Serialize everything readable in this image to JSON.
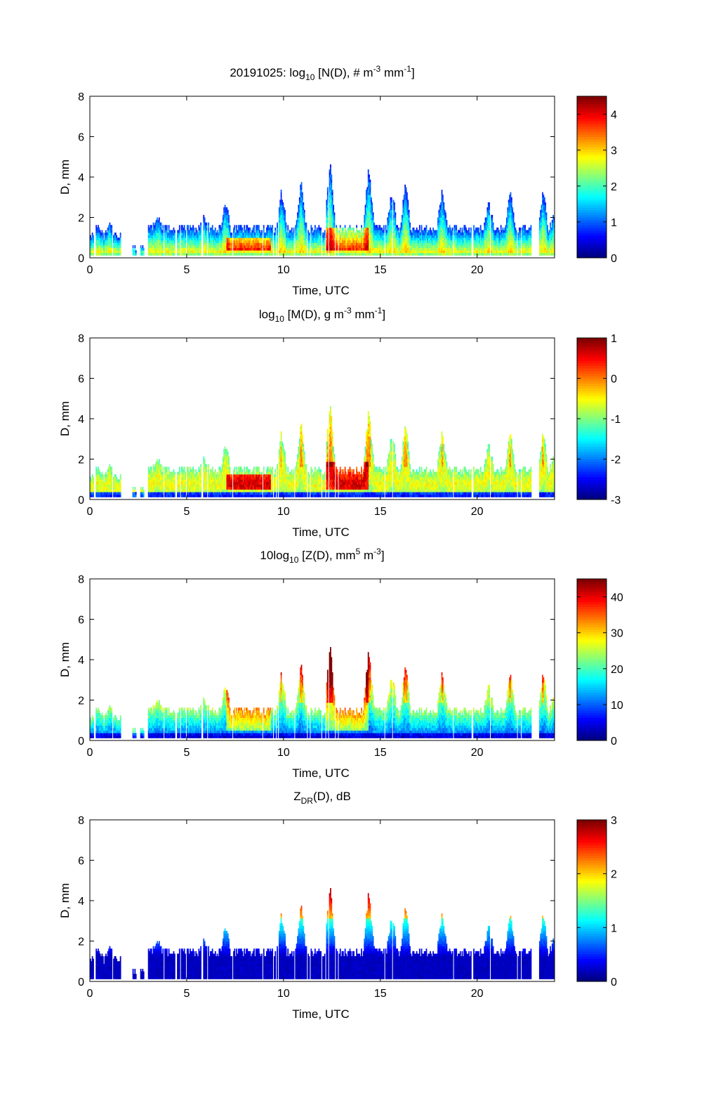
{
  "figure_date": "20191025",
  "chart_data": [
    {
      "type": "heatmap",
      "id": "nd",
      "title": "log10 [N(D), # m-3 mm-1]",
      "title_parts": {
        "prefix": "20191025: log",
        "sub1": "10",
        "mid": " [N(D), # m",
        "sup1": "-3",
        "mid2": " mm",
        "sup2": "-1",
        "suffix": "]"
      },
      "xlabel": "Time, UTC",
      "ylabel": "D, mm",
      "xlim": [
        0,
        24
      ],
      "ylim": [
        0,
        8
      ],
      "xticks": [
        0,
        5,
        10,
        15,
        20
      ],
      "yticks": [
        0,
        2,
        4,
        6,
        8
      ],
      "colorbar": {
        "min": 0,
        "max": 4.5,
        "ticks": [
          0,
          1,
          2,
          3,
          4
        ]
      },
      "colormap": "jet",
      "field": "nd"
    },
    {
      "type": "heatmap",
      "id": "md",
      "title": "log10 [M(D), g m-3 mm-1]",
      "title_parts": {
        "prefix": "log",
        "sub1": "10",
        "mid": " [M(D), g m",
        "sup1": "-3",
        "mid2": " mm",
        "sup2": "-1",
        "suffix": "]"
      },
      "xlabel": "Time, UTC",
      "ylabel": "D, mm",
      "xlim": [
        0,
        24
      ],
      "ylim": [
        0,
        8
      ],
      "xticks": [
        0,
        5,
        10,
        15,
        20
      ],
      "yticks": [
        0,
        2,
        4,
        6,
        8
      ],
      "colorbar": {
        "min": -3,
        "max": 1,
        "ticks": [
          -3,
          -2,
          -1,
          0,
          1
        ]
      },
      "colormap": "jet",
      "field": "md"
    },
    {
      "type": "heatmap",
      "id": "zd",
      "title": "10log10 [Z(D), mm5 m-3]",
      "title_parts": {
        "prefix": "10log",
        "sub1": "10",
        "mid": " [Z(D),  mm",
        "sup1": "5",
        "mid2": " m",
        "sup2": "-3",
        "suffix": "]"
      },
      "xlabel": "Time, UTC",
      "ylabel": "D, mm",
      "xlim": [
        0,
        24
      ],
      "ylim": [
        0,
        8
      ],
      "xticks": [
        0,
        5,
        10,
        15,
        20
      ],
      "yticks": [
        0,
        2,
        4,
        6,
        8
      ],
      "colorbar": {
        "min": 0,
        "max": 45,
        "ticks": [
          0,
          10,
          20,
          30,
          40
        ]
      },
      "colormap": "jet",
      "field": "zd"
    },
    {
      "type": "heatmap",
      "id": "zdr",
      "title": "ZDR(D), dB",
      "title_parts": {
        "prefix": "Z",
        "sub1": "DR",
        "mid": "(D), dB",
        "sup1": "",
        "mid2": "",
        "sup2": "",
        "suffix": ""
      },
      "xlabel": "Time, UTC",
      "ylabel": "D, mm",
      "xlim": [
        0,
        24
      ],
      "ylim": [
        0,
        8
      ],
      "xticks": [
        0,
        5,
        10,
        15,
        20
      ],
      "yticks": [
        0,
        2,
        4,
        6,
        8
      ],
      "colorbar": {
        "min": 0,
        "max": 3,
        "ticks": [
          0,
          1,
          2,
          3
        ]
      },
      "colormap": "jet",
      "field": "zdr"
    }
  ],
  "precip_envelope": {
    "description_units": "time in UTC hours, top diameter in mm",
    "segments": [
      {
        "t_start": 0.0,
        "t_end": 1.6,
        "base_top": 1.0,
        "peaks": [
          [
            0.4,
            1.6
          ],
          [
            1.0,
            1.6
          ]
        ]
      },
      {
        "t_start": 2.2,
        "t_end": 2.4,
        "base_top": 0.3,
        "peaks": []
      },
      {
        "t_start": 2.6,
        "t_end": 2.8,
        "base_top": 0.5,
        "peaks": []
      },
      {
        "t_start": 3.0,
        "t_end": 22.8,
        "base_top": 1.4,
        "peaks": [
          [
            3.5,
            2.1
          ],
          [
            5.9,
            2.0
          ],
          [
            7.0,
            2.7
          ],
          [
            9.9,
            3.2
          ],
          [
            10.9,
            3.8
          ],
          [
            12.4,
            4.9
          ],
          [
            14.4,
            4.5
          ],
          [
            15.6,
            3.3
          ],
          [
            16.3,
            3.6
          ],
          [
            18.2,
            3.3
          ],
          [
            20.6,
            2.7
          ],
          [
            21.7,
            3.3
          ]
        ]
      },
      {
        "t_start": 23.2,
        "t_end": 24.0,
        "base_top": 1.3,
        "peaks": [
          [
            23.4,
            3.4
          ],
          [
            24.0,
            2.2
          ]
        ]
      }
    ],
    "core_events": [
      {
        "t_start": 7.0,
        "t_end": 9.3,
        "d_top": 0.9
      },
      {
        "t_start": 12.2,
        "t_end": 14.4,
        "d_top": 1.5
      }
    ]
  }
}
